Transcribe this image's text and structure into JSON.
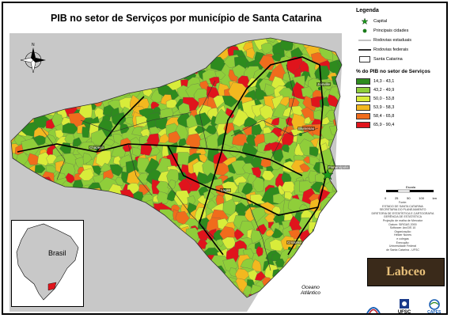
{
  "title": "PIB no setor de Serviços por município de Santa Catarina",
  "legend": {
    "heading": "Legenda",
    "symbols": [
      {
        "label": "Capital",
        "icon": "green-star-icon"
      },
      {
        "label": "Principais cidades",
        "icon": "green-dot-icon"
      },
      {
        "label": "Rodovias estaduais",
        "icon": "thin-line-icon"
      },
      {
        "label": "Rodovias federais",
        "icon": "thick-line-icon"
      },
      {
        "label": "Santa Catarina",
        "icon": "outline-box-icon"
      }
    ],
    "classes_title": "% do PIB no setor de Serviços",
    "classes": [
      {
        "label": "14,3 - 43,1",
        "color": "#2e8b1e"
      },
      {
        "label": "43,2 - 49,9",
        "color": "#8fce3a"
      },
      {
        "label": "50,0 - 53,8",
        "color": "#d8ec3a"
      },
      {
        "label": "53,9 - 58,3",
        "color": "#f3b81f"
      },
      {
        "label": "58,4 - 65,8",
        "color": "#f06c1c"
      },
      {
        "label": "65,9 - 90,4",
        "color": "#e0141c"
      }
    ]
  },
  "scale": {
    "title": "Escala",
    "ticks": [
      "0",
      "25",
      "50",
      "100"
    ],
    "unit": "km"
  },
  "credits": [
    "Fonte:",
    "ESTADO DE SANTA CATARINA",
    "SECRETARIA DO PLANEJAMENTO",
    "DIRETORIA DE ESTATÍSTICA E CARTOGRAFIA",
    "GERÊNCIA DE ESTATÍSTICA",
    "",
    "Projeção de malha de Mercator",
    "Datum: SIRGAS 2000",
    "Software: ArcGIS 10",
    "Organização:",
    "Helder Nunes",
    "e colegas",
    "Execução:",
    "",
    "Universidade Federal",
    "de Santa Catarina - UFSC"
  ],
  "logos": {
    "labceo": "Labceo",
    "ufsc": "UFSC",
    "capes": "CAPES"
  },
  "inset": {
    "label": "Brasil"
  },
  "ocean": {
    "line1": "Oceano",
    "line2": "Atlântico"
  },
  "cities": [
    "Joinville",
    "Blumenau",
    "Florianópolis",
    "Chapecó",
    "Lages",
    "Criciúma"
  ]
}
